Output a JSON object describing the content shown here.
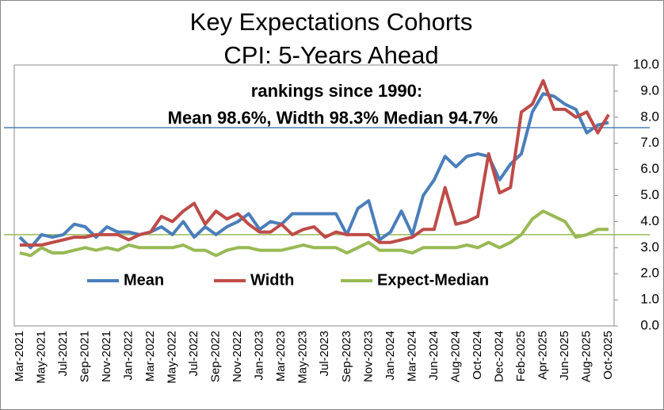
{
  "chart_data": {
    "type": "line",
    "title": [
      "Key Expectations Cohorts",
      "CPI: 5-Years Ahead"
    ],
    "subtitle": [
      "rankings since 1990:",
      "Mean 98.6%, Width 98.3% Median 94.7%"
    ],
    "categories": [
      "Mar-2021",
      null,
      "May-2021",
      null,
      "Jul-2021",
      null,
      "Sep-2021",
      null,
      "Nov-2021",
      null,
      "Jan-2022",
      null,
      "Mar-2022",
      null,
      "May-2022",
      null,
      "Jul-2022",
      null,
      "Sep-2022",
      null,
      "Nov-2022",
      null,
      "Jan-2023",
      null,
      "Mar-2023",
      null,
      "May-2023",
      null,
      "Jul-2023",
      null,
      "Sep-2023",
      null,
      "Nov-2023",
      null,
      "Jan-2024",
      null,
      "Mar-2024",
      null,
      "Jun-2024",
      null,
      "Aug-2024",
      null,
      "Oct-2024",
      null,
      "Dec-2024",
      null,
      "Feb-2025",
      null,
      "Apr-2025",
      null,
      "Jun-2025",
      null,
      "Aug-2025",
      null,
      "Oct-2025"
    ],
    "series": [
      {
        "name": "Mean",
        "color": "#4a7ebb",
        "values": [
          3.4,
          3.0,
          3.5,
          3.4,
          3.5,
          3.9,
          3.8,
          3.4,
          3.8,
          3.6,
          3.6,
          3.5,
          3.6,
          3.8,
          3.5,
          4.0,
          3.4,
          3.8,
          3.5,
          3.8,
          4.0,
          4.3,
          3.7,
          4.0,
          3.9,
          4.3,
          4.3,
          4.3,
          4.3,
          4.3,
          3.5,
          4.5,
          4.8,
          3.3,
          3.6,
          4.4,
          3.5,
          5.0,
          5.6,
          6.5,
          6.1,
          6.5,
          6.6,
          6.5,
          5.6,
          6.2,
          6.6,
          8.2,
          8.9,
          8.8,
          8.5,
          8.3,
          7.4,
          7.7,
          7.8
        ]
      },
      {
        "name": "Width",
        "color": "#be4b48",
        "values": [
          3.1,
          3.1,
          3.1,
          3.2,
          3.3,
          3.4,
          3.4,
          3.5,
          3.5,
          3.5,
          3.3,
          3.5,
          3.6,
          4.2,
          4.0,
          4.4,
          4.7,
          3.9,
          4.4,
          4.1,
          4.3,
          3.9,
          3.6,
          3.6,
          3.9,
          3.5,
          3.7,
          3.8,
          3.4,
          3.6,
          3.5,
          3.5,
          3.5,
          3.2,
          3.2,
          3.3,
          3.4,
          3.7,
          3.7,
          5.3,
          3.9,
          4.0,
          4.2,
          6.6,
          5.1,
          5.3,
          8.2,
          8.5,
          9.4,
          8.3,
          8.3,
          8.0,
          8.2,
          7.4,
          8.1
        ]
      },
      {
        "name": "Expect-Median",
        "color": "#98b954",
        "values": [
          2.8,
          2.7,
          3.0,
          2.8,
          2.8,
          2.9,
          3.0,
          2.9,
          3.0,
          2.9,
          3.1,
          3.0,
          3.0,
          3.0,
          3.0,
          3.1,
          2.9,
          2.9,
          2.7,
          2.9,
          3.0,
          3.0,
          2.9,
          2.9,
          2.9,
          3.0,
          3.1,
          3.0,
          3.0,
          3.0,
          2.8,
          3.0,
          3.2,
          2.9,
          2.9,
          2.9,
          2.8,
          3.0,
          3.0,
          3.0,
          3.0,
          3.1,
          3.0,
          3.2,
          3.0,
          3.2,
          3.5,
          4.1,
          4.4,
          4.2,
          4.0,
          3.4,
          3.5,
          3.7,
          3.7
        ]
      }
    ],
    "reference_lines": [
      {
        "value": 7.6,
        "color": "#4a7ebb"
      },
      {
        "value": 3.5,
        "color": "#98b954"
      }
    ],
    "ylim": [
      0,
      10
    ],
    "yticks": [
      {
        "value": 0,
        "label": "0.0"
      },
      {
        "value": 1,
        "label": "1.0"
      },
      {
        "value": 2,
        "label": "2.0"
      },
      {
        "value": 3,
        "label": "3.0"
      },
      {
        "value": 4,
        "label": "4.0"
      },
      {
        "value": 5,
        "label": "5.0"
      },
      {
        "value": 6,
        "label": "6.0"
      },
      {
        "value": 7,
        "label": "7.0"
      },
      {
        "value": 8,
        "label": "8.0"
      },
      {
        "value": 9,
        "label": "9.0"
      },
      {
        "value": 10,
        "label": "10.0"
      }
    ],
    "y_axis_side": "right",
    "legend": "inside-bottom"
  }
}
